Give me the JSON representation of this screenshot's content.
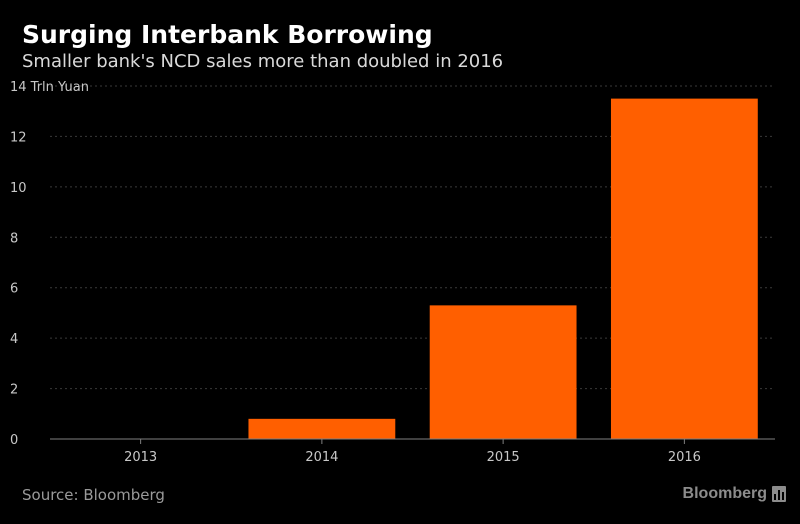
{
  "header": {
    "title": "Surging Interbank Borrowing",
    "subtitle": "Smaller bank's NCD sales more than doubled in 2016"
  },
  "footer": {
    "source": "Source: Bloomberg",
    "brand": "Bloomberg",
    "brand_icon": "bar-chart-logo-icon"
  },
  "colors": {
    "background": "#000000",
    "bar": "#ff5f00",
    "grid": "#3a3a3a",
    "axis": "#7f7f7f",
    "tick_text": "#c8c8c8"
  },
  "chart_data": {
    "type": "bar",
    "title": "Surging Interbank Borrowing",
    "subtitle": "Smaller bank's NCD sales more than doubled in 2016",
    "ylabel": "Trln Yuan",
    "xlabel": "",
    "categories": [
      "2013",
      "2014",
      "2015",
      "2016"
    ],
    "values": [
      0,
      0.8,
      5.3,
      13.5
    ],
    "ylim": [
      0,
      14
    ],
    "yticks": [
      0,
      2,
      4,
      6,
      8,
      10,
      12,
      14
    ],
    "ytick_labels": [
      "0",
      "2",
      "4",
      "6",
      "8",
      "10",
      "12",
      "14 Trln Yuan"
    ],
    "grid": "horizontal dashed",
    "legend": "none"
  }
}
